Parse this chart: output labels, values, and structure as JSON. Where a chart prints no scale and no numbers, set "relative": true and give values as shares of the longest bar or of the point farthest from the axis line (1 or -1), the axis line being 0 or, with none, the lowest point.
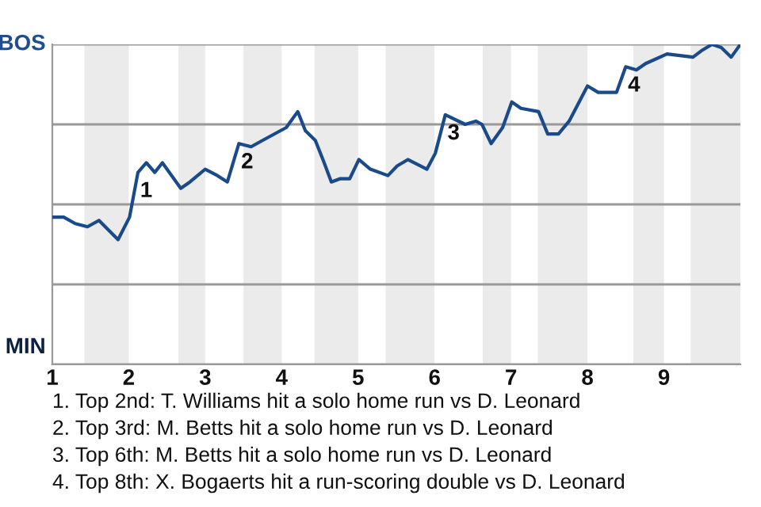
{
  "chart_data": {
    "type": "line",
    "relative": true,
    "x": [
      1.01,
      1.15,
      1.3,
      1.46,
      1.61,
      1.86,
      2.01,
      2.12,
      2.23,
      2.34,
      2.44,
      2.68,
      2.8,
      3.0,
      3.16,
      3.29,
      3.44,
      3.6,
      3.75,
      4.06,
      4.21,
      4.31,
      4.44,
      4.54,
      4.65,
      4.76,
      4.89,
      5.01,
      5.16,
      5.39,
      5.51,
      5.65,
      5.9,
      6.01,
      6.14,
      6.4,
      6.54,
      6.62,
      6.74,
      6.89,
      7.01,
      7.13,
      7.36,
      7.48,
      7.62,
      7.76,
      8.0,
      8.14,
      8.28,
      8.38,
      8.5,
      8.64,
      8.76,
      9.04,
      9.38,
      9.49,
      9.63,
      9.75,
      9.88,
      10.0
    ],
    "series": [
      {
        "color": "#1a4a8a",
        "values": [
          0.46,
          0.46,
          0.44,
          0.43,
          0.45,
          0.39,
          0.46,
          0.6,
          0.63,
          0.6,
          0.63,
          0.55,
          0.57,
          0.61,
          0.59,
          0.57,
          0.69,
          0.68,
          0.7,
          0.74,
          0.79,
          0.73,
          0.7,
          0.64,
          0.57,
          0.58,
          0.58,
          0.64,
          0.61,
          0.59,
          0.62,
          0.64,
          0.61,
          0.66,
          0.78,
          0.75,
          0.76,
          0.75,
          0.69,
          0.74,
          0.82,
          0.8,
          0.79,
          0.72,
          0.72,
          0.76,
          0.87,
          0.85,
          0.85,
          0.85,
          0.93,
          0.92,
          0.94,
          0.97,
          0.96,
          0.98,
          1.0,
          0.99,
          0.96,
          1.0
        ]
      }
    ],
    "xlim": [
      1,
      10
    ],
    "xticks": [
      1,
      2,
      3,
      4,
      5,
      6,
      7,
      8,
      9
    ],
    "grid": "y",
    "marker": "none",
    "line_style": "solid",
    "bands": [
      {
        "axis": "x",
        "from": 1.42,
        "to": 2.0,
        "color": "#ebebeb"
      },
      {
        "axis": "x",
        "from": 2.65,
        "to": 3.0,
        "color": "#ebebeb"
      },
      {
        "axis": "x",
        "from": 3.5,
        "to": 4.0,
        "color": "#ebebeb"
      },
      {
        "axis": "x",
        "from": 4.43,
        "to": 5.0,
        "color": "#ebebeb"
      },
      {
        "axis": "x",
        "from": 5.36,
        "to": 6.0,
        "color": "#ebebeb"
      },
      {
        "axis": "x",
        "from": 6.63,
        "to": 7.0,
        "color": "#ebebeb"
      },
      {
        "axis": "x",
        "from": 7.35,
        "to": 8.0,
        "color": "#ebebeb"
      },
      {
        "axis": "x",
        "from": 8.6,
        "to": 9.0,
        "color": "#ebebeb"
      },
      {
        "axis": "x",
        "from": 9.35,
        "to": 10.0,
        "color": "#ebebeb"
      }
    ],
    "annotations": [
      "BOS",
      "MIN",
      {
        "text": "1",
        "x": 2.12,
        "y": 0.6
      },
      {
        "text": "2",
        "x": 3.44,
        "y": 0.69
      },
      {
        "text": "3",
        "x": 6.14,
        "y": 0.78
      },
      {
        "text": "4",
        "x": 8.5,
        "y": 0.93
      },
      "1. Top 2nd: T. Williams hit a solo home run vs D. Leonard",
      "2. Top 3rd: M. Betts hit a solo home run vs D. Leonard",
      "3. Top 6th: M. Betts hit a solo home run vs D. Leonard",
      "4. Top 8th: X. Bogaerts hit a run-scoring double vs D. Leonard"
    ]
  }
}
